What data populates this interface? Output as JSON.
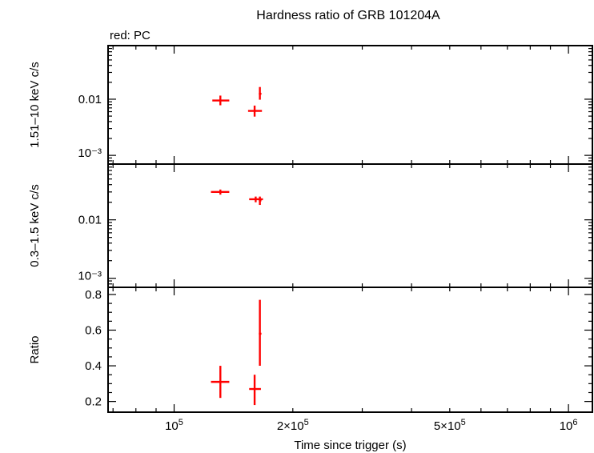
{
  "title": "Hardness ratio of GRB 101204A",
  "legend_note": "red: PC",
  "colors": {
    "data": "#ff0000",
    "axes": "#000000"
  },
  "chart_data": [
    {
      "type": "scatter",
      "panel": "hard",
      "ylabel": "1.51–10 keV c/s",
      "yscale": "log",
      "ylim": [
        0.0007,
        0.09
      ],
      "yticks": [
        {
          "v": 0.01,
          "t": "0.01"
        },
        {
          "v": 0.001,
          "t": "10⁻³"
        }
      ],
      "xscale": "log",
      "xlim": [
        68000,
        1150000
      ],
      "points": [
        {
          "x": 131000,
          "xlo": 125000,
          "xhi": 138000,
          "y": 0.0095,
          "ylo": 0.0078,
          "yhi": 0.0116
        },
        {
          "x": 160000,
          "xlo": 154000,
          "xhi": 167000,
          "y": 0.0062,
          "ylo": 0.0049,
          "yhi": 0.0077
        },
        {
          "x": 165000,
          "xlo": 164000,
          "xhi": 166500,
          "y": 0.0125,
          "ylo": 0.0098,
          "yhi": 0.0165
        }
      ]
    },
    {
      "type": "scatter",
      "panel": "soft",
      "ylabel": "0.3–1.5 keV c/s",
      "yscale": "log",
      "ylim": [
        0.0007,
        0.09
      ],
      "yticks": [
        {
          "v": 0.01,
          "t": "0.01"
        },
        {
          "v": 0.001,
          "t": "10⁻³"
        }
      ],
      "xscale": "log",
      "xlim": [
        68000,
        1150000
      ],
      "points": [
        {
          "x": 131000,
          "xlo": 124000,
          "xhi": 138000,
          "y": 0.03,
          "ylo": 0.027,
          "yhi": 0.033
        },
        {
          "x": 161000,
          "xlo": 155000,
          "xhi": 168000,
          "y": 0.0225,
          "ylo": 0.02,
          "yhi": 0.025
        },
        {
          "x": 165000,
          "xlo": 164000,
          "xhi": 166500,
          "y": 0.0215,
          "ylo": 0.018,
          "yhi": 0.025
        }
      ]
    },
    {
      "type": "scatter",
      "panel": "ratio",
      "ylabel": "Ratio",
      "yscale": "linear",
      "ylim": [
        0.14,
        0.84
      ],
      "yticks": [
        {
          "v": 0.2,
          "t": "0.2"
        },
        {
          "v": 0.4,
          "t": "0.4"
        },
        {
          "v": 0.6,
          "t": "0.6"
        },
        {
          "v": 0.8,
          "t": "0.8"
        }
      ],
      "xscale": "log",
      "xlim": [
        68000,
        1150000
      ],
      "xlabel": "Time since trigger (s)",
      "xticks": [
        {
          "v": 100000,
          "t": "10",
          "sup": "5"
        },
        {
          "v": 200000,
          "t": "2×10",
          "sup": "5"
        },
        {
          "v": 500000,
          "t": "5×10",
          "sup": "5"
        },
        {
          "v": 1000000,
          "t": "10",
          "sup": "6"
        }
      ],
      "points": [
        {
          "x": 131000,
          "xlo": 124000,
          "xhi": 138000,
          "y": 0.31,
          "ylo": 0.22,
          "yhi": 0.4
        },
        {
          "x": 160000,
          "xlo": 155000,
          "xhi": 166000,
          "y": 0.27,
          "ylo": 0.18,
          "yhi": 0.35
        },
        {
          "x": 165000,
          "xlo": 164000,
          "xhi": 166500,
          "y": 0.58,
          "ylo": 0.4,
          "yhi": 0.77
        }
      ]
    }
  ]
}
